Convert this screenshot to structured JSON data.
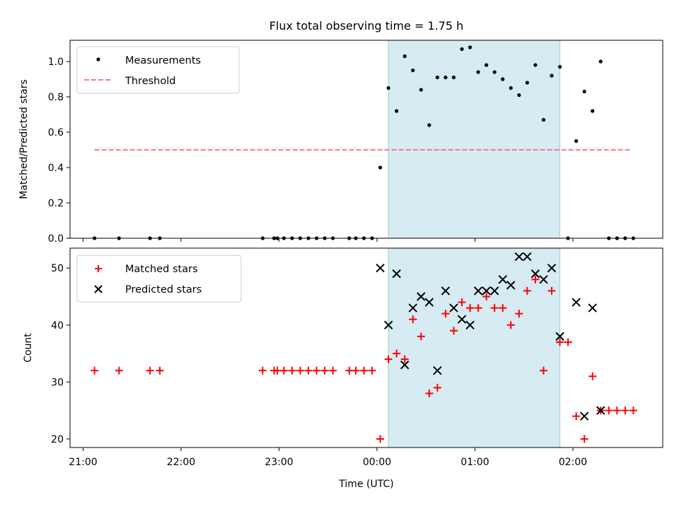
{
  "chart_data": [
    {
      "type": "scatter",
      "title": "Flux total observing time = 1.75 h",
      "ylabel": "Matched/Predicted stars",
      "xlabel": "",
      "ylim": [
        0,
        1.12
      ],
      "yticks": [
        "0.0",
        "0.2",
        "0.4",
        "0.6",
        "0.8",
        "1.0"
      ],
      "legend_position": "top-left",
      "threshold_value": 0.5,
      "threshold_range": [
        "21:07",
        "02:35"
      ],
      "shaded_region": [
        "00:07",
        "01:52"
      ],
      "series": [
        {
          "name": "Measurements",
          "color": "#000000",
          "marker": "dot",
          "points": [
            [
              "21:07",
              0.0
            ],
            [
              "21:22",
              0.0
            ],
            [
              "21:41",
              0.0
            ],
            [
              "21:47",
              0.0
            ],
            [
              "22:50",
              0.0
            ],
            [
              "22:57",
              0.0
            ],
            [
              "22:59",
              0.0
            ],
            [
              "23:03",
              0.0
            ],
            [
              "23:08",
              0.0
            ],
            [
              "23:13",
              0.0
            ],
            [
              "23:18",
              0.0
            ],
            [
              "23:23",
              0.0
            ],
            [
              "23:28",
              0.0
            ],
            [
              "23:33",
              0.0
            ],
            [
              "23:43",
              0.0
            ],
            [
              "23:47",
              0.0
            ],
            [
              "23:52",
              0.0
            ],
            [
              "23:57",
              0.0
            ],
            [
              "00:02",
              0.4
            ],
            [
              "00:07",
              0.85
            ],
            [
              "00:12",
              0.72
            ],
            [
              "00:17",
              1.03
            ],
            [
              "00:22",
              0.95
            ],
            [
              "00:27",
              0.84
            ],
            [
              "00:32",
              0.64
            ],
            [
              "00:37",
              0.91
            ],
            [
              "00:42",
              0.91
            ],
            [
              "00:47",
              0.91
            ],
            [
              "00:52",
              1.07
            ],
            [
              "00:57",
              1.08
            ],
            [
              "01:02",
              0.94
            ],
            [
              "01:07",
              0.98
            ],
            [
              "01:12",
              0.94
            ],
            [
              "01:17",
              0.9
            ],
            [
              "01:22",
              0.85
            ],
            [
              "01:27",
              0.81
            ],
            [
              "01:32",
              0.88
            ],
            [
              "01:37",
              0.98
            ],
            [
              "01:42",
              0.67
            ],
            [
              "01:47",
              0.92
            ],
            [
              "01:52",
              0.97
            ],
            [
              "01:57",
              0.0
            ],
            [
              "02:02",
              0.55
            ],
            [
              "02:07",
              0.83
            ],
            [
              "02:12",
              0.72
            ],
            [
              "02:17",
              1.0
            ],
            [
              "02:22",
              0.0
            ],
            [
              "02:27",
              0.0
            ],
            [
              "02:32",
              0.0
            ],
            [
              "02:37",
              0.0
            ]
          ]
        },
        {
          "name": "Threshold",
          "color": "#f08080",
          "style": "dashed"
        }
      ]
    },
    {
      "type": "scatter",
      "title": "",
      "ylabel": "Count",
      "xlabel": "Time (UTC)",
      "ylim": [
        18.5,
        53.5
      ],
      "yticks": [
        "20",
        "30",
        "40",
        "50"
      ],
      "xticks": [
        "21:00",
        "22:00",
        "23:00",
        "00:00",
        "01:00",
        "02:00"
      ],
      "legend_position": "top-left",
      "shaded_region": [
        "00:07",
        "01:52"
      ],
      "series": [
        {
          "name": "Matched stars",
          "color": "#ff0000",
          "marker": "plus",
          "points": [
            [
              "21:07",
              32
            ],
            [
              "21:22",
              32
            ],
            [
              "21:41",
              32
            ],
            [
              "21:47",
              32
            ],
            [
              "22:50",
              32
            ],
            [
              "22:57",
              32
            ],
            [
              "22:59",
              32
            ],
            [
              "23:03",
              32
            ],
            [
              "23:08",
              32
            ],
            [
              "23:13",
              32
            ],
            [
              "23:18",
              32
            ],
            [
              "23:23",
              32
            ],
            [
              "23:28",
              32
            ],
            [
              "23:33",
              32
            ],
            [
              "23:43",
              32
            ],
            [
              "23:47",
              32
            ],
            [
              "23:52",
              32
            ],
            [
              "23:57",
              32
            ],
            [
              "00:02",
              20
            ],
            [
              "00:07",
              34
            ],
            [
              "00:12",
              35
            ],
            [
              "00:17",
              34
            ],
            [
              "00:22",
              41
            ],
            [
              "00:27",
              38
            ],
            [
              "00:32",
              28
            ],
            [
              "00:37",
              29
            ],
            [
              "00:42",
              42
            ],
            [
              "00:47",
              39
            ],
            [
              "00:52",
              44
            ],
            [
              "00:57",
              43
            ],
            [
              "01:02",
              43
            ],
            [
              "01:07",
              45
            ],
            [
              "01:12",
              43
            ],
            [
              "01:17",
              43
            ],
            [
              "01:22",
              40
            ],
            [
              "01:27",
              42
            ],
            [
              "01:32",
              46
            ],
            [
              "01:37",
              48
            ],
            [
              "01:42",
              32
            ],
            [
              "01:47",
              46
            ],
            [
              "01:52",
              37
            ],
            [
              "01:57",
              37
            ],
            [
              "02:02",
              24
            ],
            [
              "02:07",
              20
            ],
            [
              "02:12",
              31
            ],
            [
              "02:17",
              25
            ],
            [
              "02:22",
              25
            ],
            [
              "02:27",
              25
            ],
            [
              "02:32",
              25
            ],
            [
              "02:37",
              25
            ]
          ]
        },
        {
          "name": "Predicted stars",
          "color": "#000000",
          "marker": "x",
          "points": [
            [
              "00:02",
              50
            ],
            [
              "00:07",
              40
            ],
            [
              "00:12",
              49
            ],
            [
              "00:17",
              33
            ],
            [
              "00:22",
              43
            ],
            [
              "00:27",
              45
            ],
            [
              "00:32",
              44
            ],
            [
              "00:37",
              32
            ],
            [
              "00:42",
              46
            ],
            [
              "00:47",
              43
            ],
            [
              "00:52",
              41
            ],
            [
              "00:57",
              40
            ],
            [
              "01:02",
              46
            ],
            [
              "01:07",
              46
            ],
            [
              "01:12",
              46
            ],
            [
              "01:17",
              48
            ],
            [
              "01:22",
              47
            ],
            [
              "01:27",
              52
            ],
            [
              "01:32",
              52
            ],
            [
              "01:37",
              49
            ],
            [
              "01:42",
              48
            ],
            [
              "01:47",
              50
            ],
            [
              "01:52",
              38
            ],
            [
              "02:02",
              44
            ],
            [
              "02:07",
              24
            ],
            [
              "02:12",
              43
            ],
            [
              "02:17",
              25
            ]
          ]
        }
      ]
    }
  ]
}
